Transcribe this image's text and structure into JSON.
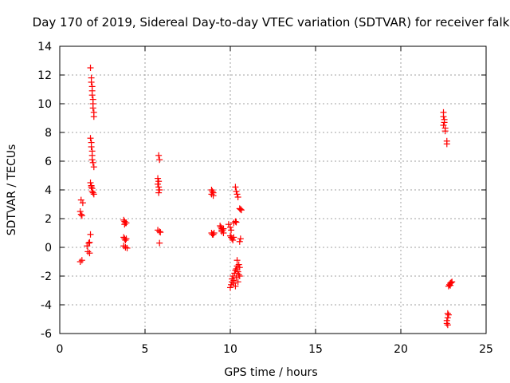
{
  "chart_data": {
    "type": "scatter",
    "title": "Day 170 of 2019, Sidereal Day-to-day VTEC variation (SDTVAR) for receiver falk",
    "xlabel": "GPS time / hours",
    "ylabel": "SDTVAR / TECUs",
    "xlim": [
      0,
      25
    ],
    "ylim": [
      -6,
      14
    ],
    "xticks": [
      0,
      5,
      10,
      15,
      20,
      25
    ],
    "yticks": [
      -6,
      -4,
      -2,
      0,
      2,
      4,
      6,
      8,
      10,
      12,
      14
    ],
    "grid": true,
    "marker": "+",
    "color": "#ff0000",
    "series": [
      {
        "name": "SDTVAR",
        "points": [
          [
            1.2,
            2.5
          ],
          [
            1.25,
            2.3
          ],
          [
            1.3,
            2.2
          ],
          [
            1.25,
            3.3
          ],
          [
            1.35,
            3.1
          ],
          [
            1.2,
            -1.0
          ],
          [
            1.3,
            -0.9
          ],
          [
            1.6,
            0.1
          ],
          [
            1.7,
            0.3
          ],
          [
            1.75,
            0.35
          ],
          [
            1.65,
            -0.3
          ],
          [
            1.75,
            -0.4
          ],
          [
            1.8,
            0.9
          ],
          [
            1.8,
            12.5
          ],
          [
            1.85,
            11.8
          ],
          [
            1.85,
            11.5
          ],
          [
            1.9,
            11.2
          ],
          [
            1.9,
            10.9
          ],
          [
            1.9,
            10.6
          ],
          [
            1.95,
            10.3
          ],
          [
            1.95,
            10.0
          ],
          [
            1.95,
            9.7
          ],
          [
            2.0,
            9.4
          ],
          [
            2.0,
            9.1
          ],
          [
            1.8,
            7.6
          ],
          [
            1.85,
            7.3
          ],
          [
            1.85,
            7.0
          ],
          [
            1.9,
            6.7
          ],
          [
            1.9,
            6.4
          ],
          [
            1.9,
            6.1
          ],
          [
            1.95,
            5.9
          ],
          [
            2.0,
            5.6
          ],
          [
            1.8,
            4.5
          ],
          [
            1.85,
            4.3
          ],
          [
            1.85,
            4.2
          ],
          [
            1.9,
            4.1
          ],
          [
            1.9,
            3.9
          ],
          [
            1.95,
            3.8
          ],
          [
            2.0,
            3.7
          ],
          [
            3.75,
            1.9
          ],
          [
            3.8,
            1.8
          ],
          [
            3.85,
            1.7
          ],
          [
            3.8,
            1.6
          ],
          [
            3.9,
            1.7
          ],
          [
            3.75,
            0.7
          ],
          [
            3.8,
            0.6
          ],
          [
            3.85,
            0.5
          ],
          [
            3.9,
            0.6
          ],
          [
            3.75,
            0.1
          ],
          [
            3.85,
            0.0
          ],
          [
            3.95,
            -0.05
          ],
          [
            5.8,
            6.4
          ],
          [
            5.85,
            6.1
          ],
          [
            5.75,
            4.8
          ],
          [
            5.8,
            4.6
          ],
          [
            5.75,
            4.4
          ],
          [
            5.8,
            4.2
          ],
          [
            5.85,
            4.0
          ],
          [
            5.8,
            3.8
          ],
          [
            5.75,
            1.2
          ],
          [
            5.85,
            1.1
          ],
          [
            5.9,
            1.05
          ],
          [
            5.85,
            0.3
          ],
          [
            8.9,
            4.0
          ],
          [
            8.95,
            3.9
          ],
          [
            9.0,
            3.8
          ],
          [
            8.9,
            3.7
          ],
          [
            9.0,
            3.6
          ],
          [
            8.9,
            1.0
          ],
          [
            8.95,
            0.9
          ],
          [
            9.0,
            0.9
          ],
          [
            9.05,
            1.0
          ],
          [
            9.4,
            1.5
          ],
          [
            9.45,
            1.4
          ],
          [
            9.5,
            1.3
          ],
          [
            9.5,
            1.2
          ],
          [
            9.55,
            1.2
          ],
          [
            9.6,
            1.3
          ],
          [
            9.6,
            1.0
          ],
          [
            9.5,
            1.1
          ],
          [
            9.9,
            1.6
          ],
          [
            10.0,
            1.4
          ],
          [
            10.05,
            1.2
          ],
          [
            10.0,
            0.8
          ],
          [
            10.05,
            0.7
          ],
          [
            10.1,
            0.6
          ],
          [
            10.15,
            0.5
          ],
          [
            10.2,
            0.7
          ],
          [
            10.2,
            1.7
          ],
          [
            10.3,
            1.8
          ],
          [
            10.35,
            1.75
          ],
          [
            10.3,
            4.2
          ],
          [
            10.35,
            3.9
          ],
          [
            10.4,
            3.7
          ],
          [
            10.45,
            3.5
          ],
          [
            10.55,
            2.7
          ],
          [
            10.6,
            2.65
          ],
          [
            10.65,
            2.6
          ],
          [
            10.6,
            0.6
          ],
          [
            10.55,
            0.4
          ],
          [
            10.0,
            -2.8
          ],
          [
            10.05,
            -2.6
          ],
          [
            10.1,
            -2.4
          ],
          [
            10.1,
            -2.2
          ],
          [
            10.15,
            -2.0
          ],
          [
            10.2,
            -2.5
          ],
          [
            10.2,
            -2.3
          ],
          [
            10.25,
            -1.8
          ],
          [
            10.3,
            -1.6
          ],
          [
            10.3,
            -2.7
          ],
          [
            10.35,
            -2.1
          ],
          [
            10.35,
            -1.5
          ],
          [
            10.4,
            -1.3
          ],
          [
            10.4,
            -0.9
          ],
          [
            10.45,
            -1.7
          ],
          [
            10.45,
            -2.4
          ],
          [
            10.5,
            -1.9
          ],
          [
            10.5,
            -1.2
          ],
          [
            10.55,
            -1.4
          ],
          [
            10.55,
            -2.0
          ],
          [
            22.5,
            9.4
          ],
          [
            22.5,
            9.1
          ],
          [
            22.55,
            8.9
          ],
          [
            22.55,
            8.7
          ],
          [
            22.5,
            8.5
          ],
          [
            22.6,
            8.3
          ],
          [
            22.6,
            8.1
          ],
          [
            22.7,
            7.4
          ],
          [
            22.7,
            7.2
          ],
          [
            22.8,
            -2.7
          ],
          [
            22.85,
            -2.6
          ],
          [
            22.9,
            -2.5
          ],
          [
            22.95,
            -2.45
          ],
          [
            23.0,
            -2.4
          ],
          [
            22.9,
            -2.65
          ],
          [
            22.75,
            -4.6
          ],
          [
            22.75,
            -4.9
          ],
          [
            22.7,
            -5.1
          ],
          [
            22.7,
            -5.3
          ],
          [
            22.75,
            -5.4
          ],
          [
            22.8,
            -4.7
          ]
        ]
      }
    ]
  }
}
